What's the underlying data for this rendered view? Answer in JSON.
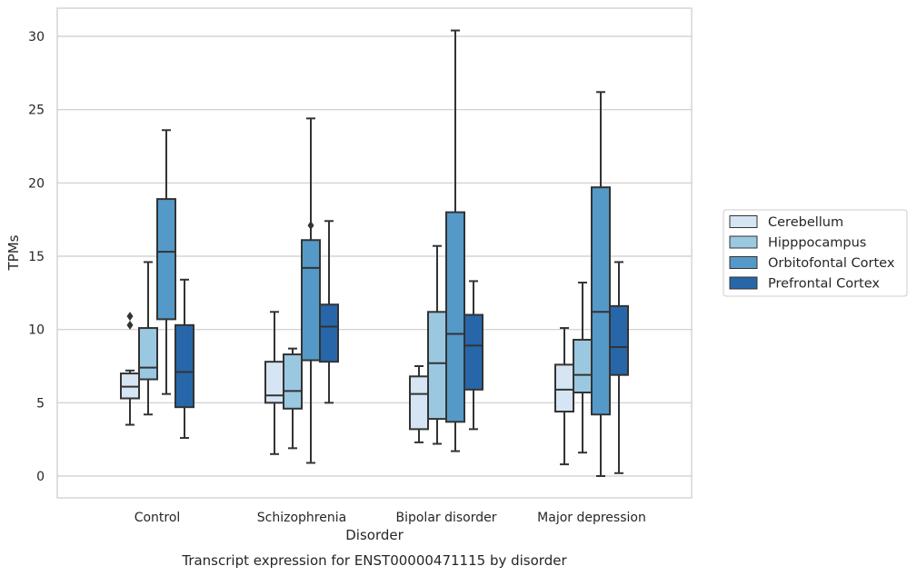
{
  "chart_data": {
    "type": "box",
    "caption": "Transcript expression for ENST00000471115 by disorder",
    "xlabel": "Disorder",
    "ylabel": "TPMs",
    "ylim": [
      -1.5,
      32
    ],
    "yticks": [
      0,
      5,
      10,
      15,
      20,
      25,
      30
    ],
    "grid": "horizontal",
    "legend_position": "right",
    "categories": [
      "Control",
      "Schizophrenia",
      "Bipolar disorder",
      "Major depression"
    ],
    "series": [
      {
        "name": "Cerebellum",
        "color": "#d6e5f3",
        "boxes": [
          {
            "whislo": 3.5,
            "q1": 5.3,
            "med": 6.1,
            "q3": 7.0,
            "whishi": 7.2,
            "fliers": [
              10.3,
              10.9
            ]
          },
          {
            "whislo": 1.5,
            "q1": 5.0,
            "med": 5.5,
            "q3": 7.8,
            "whishi": 11.2,
            "fliers": []
          },
          {
            "whislo": 2.3,
            "q1": 3.2,
            "med": 5.6,
            "q3": 6.8,
            "whishi": 7.5,
            "fliers": []
          },
          {
            "whislo": 0.8,
            "q1": 4.4,
            "med": 5.9,
            "q3": 7.6,
            "whishi": 10.1,
            "fliers": []
          }
        ]
      },
      {
        "name": "Hipppocampus",
        "color": "#9ac8e0",
        "boxes": [
          {
            "whislo": 4.2,
            "q1": 6.6,
            "med": 7.4,
            "q3": 10.1,
            "whishi": 14.6,
            "fliers": []
          },
          {
            "whislo": 1.9,
            "q1": 4.6,
            "med": 5.8,
            "q3": 8.3,
            "whishi": 8.7,
            "fliers": []
          },
          {
            "whislo": 2.2,
            "q1": 3.9,
            "med": 7.7,
            "q3": 11.2,
            "whishi": 15.7,
            "fliers": []
          },
          {
            "whislo": 1.6,
            "q1": 5.7,
            "med": 6.9,
            "q3": 9.3,
            "whishi": 13.2,
            "fliers": []
          }
        ]
      },
      {
        "name": "Orbitofontal Cortex",
        "color": "#5599c8",
        "boxes": [
          {
            "whislo": 5.6,
            "q1": 10.7,
            "med": 15.3,
            "q3": 18.9,
            "whishi": 23.6,
            "fliers": []
          },
          {
            "whislo": 0.9,
            "q1": 7.9,
            "med": 14.2,
            "q3": 16.1,
            "whishi": 24.4,
            "fliers": [
              17.1
            ]
          },
          {
            "whislo": 1.7,
            "q1": 3.7,
            "med": 9.7,
            "q3": 18.0,
            "whishi": 30.4,
            "fliers": []
          },
          {
            "whislo": 0.0,
            "q1": 4.2,
            "med": 11.2,
            "q3": 19.7,
            "whishi": 26.2,
            "fliers": []
          }
        ]
      },
      {
        "name": "Prefrontal Cortex",
        "color": "#2767a9",
        "boxes": [
          {
            "whislo": 2.6,
            "q1": 4.7,
            "med": 7.1,
            "q3": 10.3,
            "whishi": 13.4,
            "fliers": []
          },
          {
            "whislo": 5.0,
            "q1": 7.8,
            "med": 10.2,
            "q3": 11.7,
            "whishi": 17.4,
            "fliers": []
          },
          {
            "whislo": 3.2,
            "q1": 5.9,
            "med": 8.9,
            "q3": 11.0,
            "whishi": 13.3,
            "fliers": []
          },
          {
            "whislo": 0.2,
            "q1": 6.9,
            "med": 8.8,
            "q3": 11.6,
            "whishi": 14.6,
            "fliers": []
          }
        ]
      }
    ]
  },
  "style": {
    "grid_color": "#cccccc",
    "frame_color": "#cccccc",
    "box_edge_color": "#333333"
  }
}
